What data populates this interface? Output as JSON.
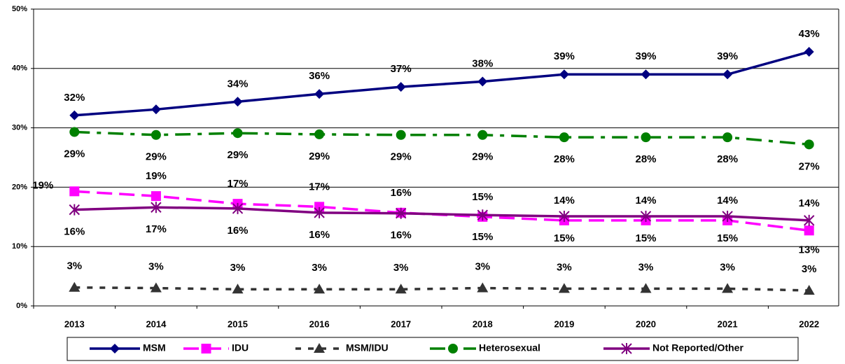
{
  "chart_data": {
    "type": "line",
    "categories": [
      "2013",
      "2014",
      "2015",
      "2016",
      "2017",
      "2018",
      "2019",
      "2020",
      "2021",
      "2022"
    ],
    "series": [
      {
        "name": "MSM",
        "color": "#000080",
        "values": [
          32.1,
          33.1,
          34.4,
          35.7,
          36.9,
          37.8,
          39,
          39,
          39,
          42.8
        ],
        "value_labels": [
          "32%",
          null,
          "34%",
          "36%",
          "37%",
          "38%",
          "39%",
          "39%",
          "39%",
          "43%"
        ]
      },
      {
        "name": "IDU",
        "color": "#ff00ff",
        "values": [
          19.3,
          18.5,
          17.2,
          16.7,
          15.7,
          15,
          14.4,
          14.4,
          14.4,
          12.7
        ],
        "value_labels": [
          "19%",
          "19%",
          "17%",
          "17%",
          "16%",
          "15%",
          "14%",
          "14%",
          "14%",
          "13%"
        ]
      },
      {
        "name": "MSM/IDU",
        "color": "#333333",
        "values": [
          3.1,
          3,
          2.8,
          2.8,
          2.8,
          3,
          2.9,
          2.9,
          2.9,
          2.6
        ],
        "value_labels": [
          "3%",
          "3%",
          "3%",
          "3%",
          "3%",
          "3%",
          "3%",
          "3%",
          "3%",
          "3%"
        ]
      },
      {
        "name": "Heterosexual",
        "color": "#008000",
        "values": [
          29.3,
          28.8,
          29.1,
          28.9,
          28.8,
          28.8,
          28.4,
          28.4,
          28.4,
          27.2
        ],
        "value_labels": [
          "29%",
          "29%",
          "29%",
          "29%",
          "29%",
          "29%",
          "28%",
          "28%",
          "28%",
          "27%"
        ]
      },
      {
        "name": "Not Reported/Other",
        "color": "#800080",
        "values": [
          16.2,
          16.6,
          16.4,
          15.7,
          15.6,
          15.3,
          15.1,
          15.1,
          15.1,
          14.4
        ],
        "value_labels": [
          "16%",
          "17%",
          "16%",
          "16%",
          "16%",
          "15%",
          "15%",
          "15%",
          "15%",
          "14%"
        ]
      }
    ],
    "ylim": [
      0,
      50
    ],
    "yticks": [
      {
        "value": 0,
        "label": "0%"
      },
      {
        "value": 10,
        "label": "10%"
      },
      {
        "value": 20,
        "label": "20%"
      },
      {
        "value": 30,
        "label": "30%"
      },
      {
        "value": 40,
        "label": "40%"
      },
      {
        "value": 50,
        "label": "50%"
      }
    ],
    "grid": true
  }
}
